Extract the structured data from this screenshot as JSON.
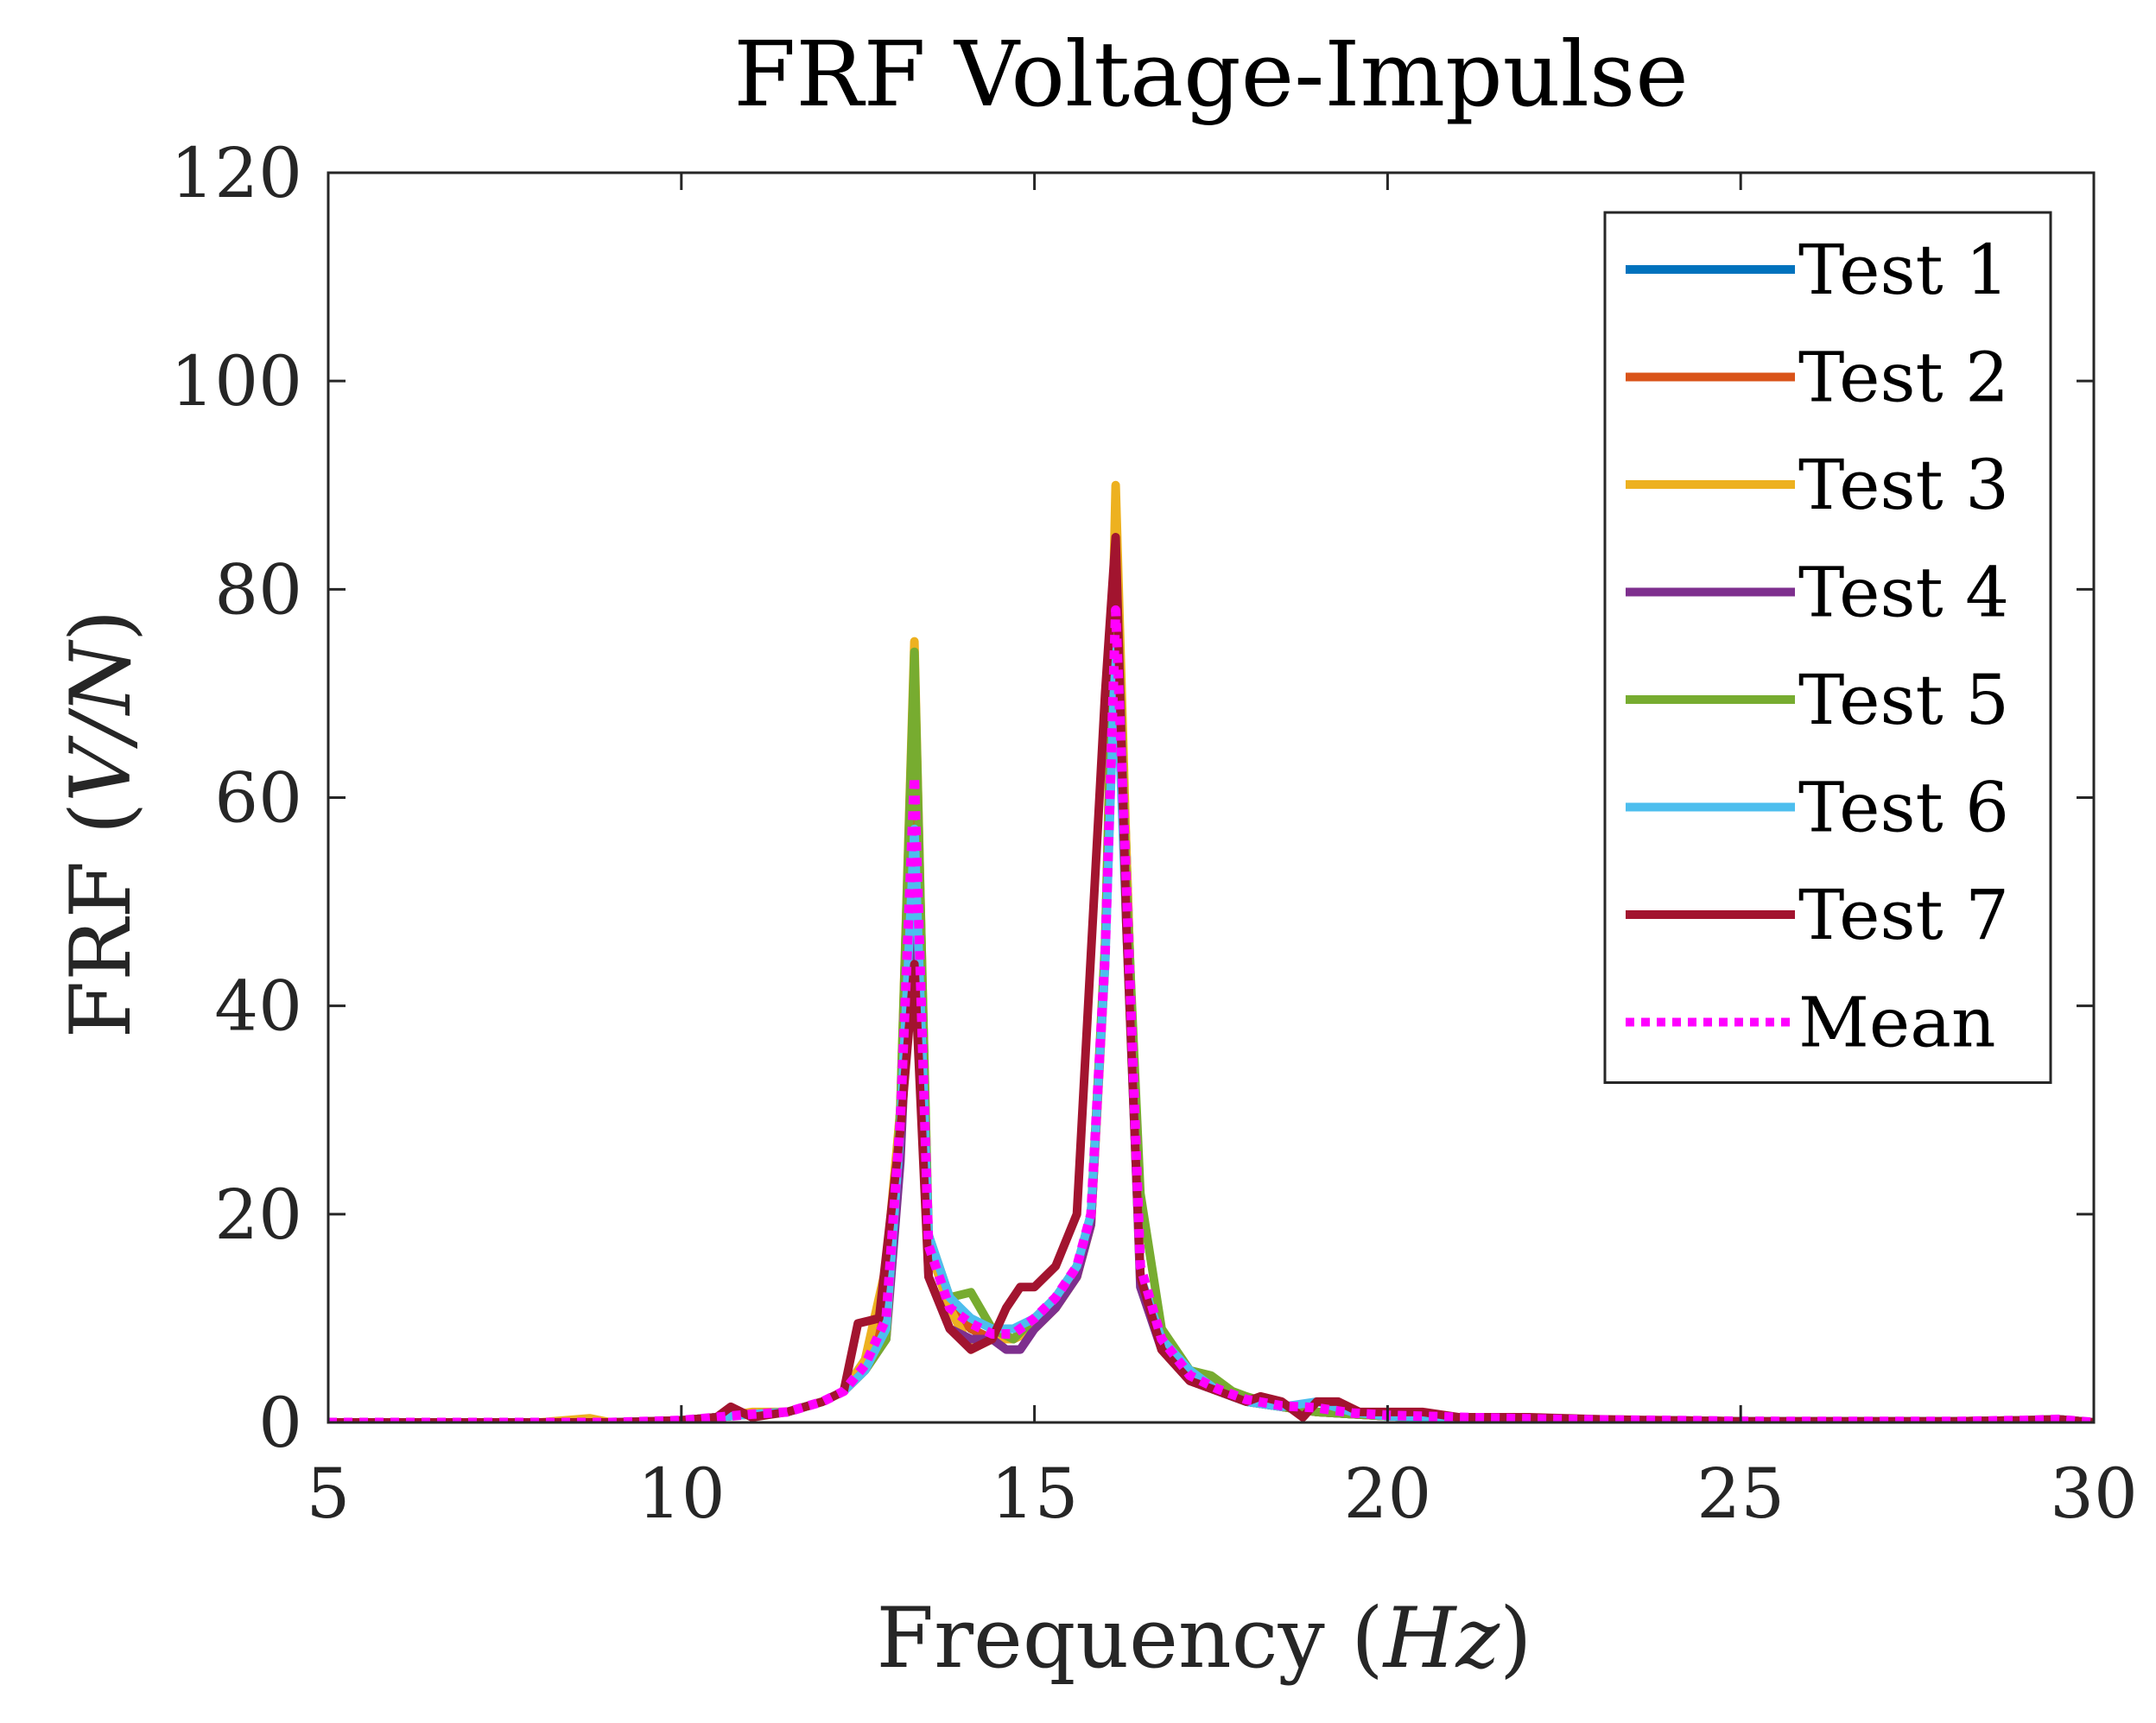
{
  "chart_data": {
    "type": "line",
    "title": "FRF Voltage-Impulse",
    "xlabel": {
      "text": "Frequency",
      "unit": "Hz"
    },
    "ylabel": {
      "text": "FRF",
      "unit": "V/N"
    },
    "xlim": [
      5,
      30
    ],
    "ylim": [
      0,
      120
    ],
    "xticks": [
      5,
      10,
      15,
      20,
      25,
      30
    ],
    "yticks": [
      0,
      20,
      40,
      60,
      80,
      100,
      120
    ],
    "grid": false,
    "legend_position": "top-right",
    "legend_title": "",
    "series": [
      {
        "name": "Test 1",
        "color": "#0072BD",
        "style": "solid",
        "x": [
          5,
          6,
          7,
          8,
          9,
          10,
          10.5,
          11,
          11.5,
          12,
          12.3,
          12.6,
          12.9,
          13.1,
          13.3,
          13.5,
          13.8,
          14.1,
          14.4,
          14.7,
          15,
          15.3,
          15.6,
          15.8,
          16,
          16.15,
          16.3,
          16.5,
          16.8,
          17.2,
          17.6,
          18,
          18.5,
          19,
          19.5,
          20,
          21,
          22,
          23,
          24,
          25,
          26,
          27,
          28,
          29,
          29.5,
          30
        ],
        "y": [
          0,
          0,
          0,
          0,
          0,
          0.2,
          0.5,
          0.8,
          1,
          2,
          3,
          6,
          12,
          30,
          66,
          18,
          11,
          9,
          8,
          8,
          9,
          11,
          14,
          20,
          45,
          82,
          55,
          14,
          7,
          4,
          3,
          2,
          1.5,
          1,
          0.8,
          0.6,
          0.4,
          0.3,
          0.2,
          0.2,
          0.1,
          0.1,
          0.1,
          0.1,
          0.2,
          0.3,
          0
        ]
      },
      {
        "name": "Test 2",
        "color": "#D95319",
        "style": "solid",
        "x": [
          5,
          6,
          7,
          8,
          9,
          10,
          10.5,
          11,
          11.5,
          12,
          12.3,
          12.6,
          12.9,
          13.1,
          13.3,
          13.5,
          13.8,
          14.1,
          14.4,
          14.7,
          15,
          15.3,
          15.6,
          15.8,
          16,
          16.15,
          16.3,
          16.5,
          16.8,
          17.2,
          17.6,
          18,
          18.5,
          19,
          19.5,
          20,
          21,
          22,
          23,
          24,
          25,
          26,
          27,
          28,
          29,
          29.5,
          30
        ],
        "y": [
          0,
          0,
          0,
          0,
          0,
          0.2,
          0.5,
          0.8,
          1,
          2,
          3,
          5,
          11,
          28,
          60,
          17,
          11,
          9,
          8,
          8,
          9,
          11,
          14,
          19,
          44,
          80,
          52,
          14,
          7,
          4,
          3,
          2,
          1.5,
          1,
          0.8,
          0.6,
          0.4,
          0.3,
          0.2,
          0.2,
          0.1,
          0.1,
          0.1,
          0.1,
          0.2,
          0.3,
          0
        ]
      },
      {
        "name": "Test 3",
        "color": "#EDB120",
        "style": "solid",
        "x": [
          5,
          6,
          7,
          8,
          8.7,
          9,
          10,
          10.5,
          11,
          11.5,
          12,
          12.3,
          12.6,
          12.9,
          13.1,
          13.3,
          13.5,
          13.8,
          14.1,
          14.4,
          14.7,
          15,
          15.3,
          15.6,
          15.8,
          16,
          16.15,
          16.3,
          16.5,
          16.8,
          17.2,
          17.6,
          18,
          18.5,
          19,
          19.5,
          20,
          21,
          22,
          23,
          24,
          25,
          26,
          27,
          28,
          29,
          29.5,
          30
        ],
        "y": [
          0,
          0,
          0,
          0,
          0.4,
          0,
          0.2,
          0.5,
          1,
          1,
          2,
          3,
          6,
          15,
          30,
          75,
          17,
          11,
          7,
          8,
          8,
          9,
          11,
          14,
          19,
          45,
          90,
          55,
          14,
          7,
          4,
          3.5,
          2,
          1.5,
          1,
          0.8,
          0.6,
          0.4,
          0.3,
          0.2,
          0.2,
          0.1,
          0.1,
          0.1,
          0.1,
          0.2,
          0.3,
          0
        ]
      },
      {
        "name": "Test 4",
        "color": "#7E2F8E",
        "style": "solid",
        "x": [
          5,
          6,
          7,
          8,
          9,
          10,
          10.5,
          11,
          11.5,
          12,
          12.3,
          12.6,
          12.9,
          13.1,
          13.3,
          13.5,
          13.8,
          14.1,
          14.4,
          14.6,
          14.8,
          15,
          15.3,
          15.6,
          15.8,
          16,
          16.15,
          16.3,
          16.5,
          16.8,
          17.2,
          17.6,
          18,
          18.5,
          19,
          19.5,
          20,
          21,
          22,
          23,
          24,
          25,
          26,
          27,
          28,
          29,
          29.5,
          30
        ],
        "y": [
          0,
          0,
          0,
          0,
          0,
          0.2,
          0.5,
          0.8,
          1,
          2,
          3,
          5,
          8,
          25,
          55,
          14,
          9,
          8,
          8,
          7,
          7,
          9,
          11,
          14,
          19,
          45,
          80,
          50,
          13,
          7,
          4,
          3,
          2,
          1.5,
          1,
          0.8,
          0.6,
          0.4,
          0.3,
          0.2,
          0.2,
          0.1,
          0.1,
          0.1,
          0.1,
          0.2,
          0.3,
          0
        ]
      },
      {
        "name": "Test 5",
        "color": "#77AC30",
        "style": "solid",
        "x": [
          5,
          6,
          7,
          8,
          9,
          10,
          10.5,
          11,
          11.5,
          12,
          12.3,
          12.6,
          12.9,
          13.1,
          13.3,
          13.5,
          13.8,
          14.1,
          14.4,
          14.7,
          15,
          15.3,
          15.6,
          15.8,
          16,
          16.15,
          16.3,
          16.5,
          16.8,
          17.2,
          17.5,
          17.8,
          18,
          18.5,
          19,
          19.5,
          20,
          21,
          22,
          23,
          24,
          25,
          26,
          27,
          28,
          29,
          29.5,
          30
        ],
        "y": [
          0,
          0,
          0,
          0,
          0,
          0.2,
          0.5,
          0.8,
          1,
          2,
          3,
          5,
          8,
          30,
          74,
          18,
          12,
          12.5,
          9,
          8,
          10,
          12,
          15,
          20,
          46,
          84,
          52,
          22,
          9,
          5,
          4.5,
          3,
          2.5,
          1.5,
          1,
          0.8,
          0.6,
          0.4,
          0.3,
          0.2,
          0.2,
          0.1,
          0.1,
          0.1,
          0.1,
          0.2,
          0.3,
          0
        ]
      },
      {
        "name": "Test 6",
        "color": "#4DBEEE",
        "style": "solid",
        "x": [
          5,
          6,
          7,
          8,
          9,
          10,
          10.5,
          11,
          11.5,
          12,
          12.3,
          12.6,
          12.9,
          13.1,
          13.3,
          13.5,
          13.8,
          14.1,
          14.4,
          14.7,
          15,
          15.3,
          15.6,
          15.8,
          16,
          16.15,
          16.3,
          16.5,
          16.8,
          17.2,
          17.6,
          18,
          18.5,
          19,
          19.5,
          20,
          21,
          22,
          23,
          24,
          25,
          26,
          27,
          28,
          29,
          29.5,
          30
        ],
        "y": [
          0,
          0,
          0,
          0,
          0,
          0.2,
          0.5,
          0.8,
          1,
          2,
          3,
          5,
          9,
          28,
          57,
          18,
          12,
          10,
          9,
          9,
          10,
          12,
          15,
          20,
          44,
          75,
          48,
          14,
          8,
          5,
          3,
          2,
          1.5,
          2,
          1,
          0.6,
          0.4,
          0.3,
          0.2,
          0.2,
          0.1,
          0.1,
          0.1,
          0.1,
          0.2,
          0.3,
          0
        ]
      },
      {
        "name": "Test 7",
        "color": "#A2142F",
        "style": "solid",
        "x": [
          5,
          6,
          7,
          8,
          9,
          10,
          10.5,
          10.7,
          11,
          11.5,
          12,
          12.3,
          12.5,
          12.8,
          13.1,
          13.3,
          13.5,
          13.8,
          14.1,
          14.4,
          14.6,
          14.8,
          15,
          15.3,
          15.6,
          15.8,
          16,
          16.15,
          16.3,
          16.5,
          16.8,
          17.2,
          17.6,
          18,
          18.2,
          18.5,
          18.8,
          19,
          19.3,
          19.6,
          20,
          20.5,
          21,
          21.5,
          22,
          23,
          24,
          25,
          26,
          27,
          28,
          29,
          29.5,
          30
        ],
        "y": [
          0,
          0,
          0,
          0,
          0,
          0.2,
          0.5,
          1.5,
          0.5,
          1,
          2,
          3,
          9.5,
          10,
          28,
          44,
          14,
          9,
          7,
          8,
          11,
          13,
          13,
          15,
          20,
          45,
          70,
          85,
          48,
          14,
          7,
          4,
          3,
          2,
          2.5,
          2,
          0.5,
          2,
          2,
          1,
          1,
          1,
          0.5,
          0.5,
          0.5,
          0.3,
          0.2,
          0.1,
          0.1,
          0.1,
          0.1,
          0.2,
          0.3,
          0
        ]
      },
      {
        "name": "Mean",
        "color": "#FF00FF",
        "style": "dotted",
        "x": [
          5,
          6,
          7,
          8,
          9,
          10,
          10.5,
          11,
          11.5,
          12,
          12.3,
          12.6,
          12.9,
          13.1,
          13.3,
          13.5,
          13.8,
          14.1,
          14.4,
          14.7,
          15,
          15.3,
          15.6,
          15.8,
          16,
          16.15,
          16.3,
          16.5,
          16.8,
          17.2,
          17.6,
          18,
          18.5,
          19,
          19.5,
          20,
          21,
          22,
          23,
          24,
          25,
          26,
          27,
          28,
          29,
          29.5,
          30
        ],
        "y": [
          0,
          0,
          0,
          0,
          0,
          0.2,
          0.5,
          0.8,
          1,
          2,
          3,
          5.5,
          10,
          29,
          62,
          17,
          11,
          9.5,
          8.5,
          8.5,
          10,
          12,
          15,
          20,
          45,
          78,
          52,
          15,
          8,
          4.5,
          3.2,
          2.2,
          1.6,
          1.4,
          0.9,
          0.7,
          0.5,
          0.35,
          0.25,
          0.2,
          0.12,
          0.1,
          0.1,
          0.1,
          0.2,
          0.3,
          0
        ]
      }
    ]
  }
}
